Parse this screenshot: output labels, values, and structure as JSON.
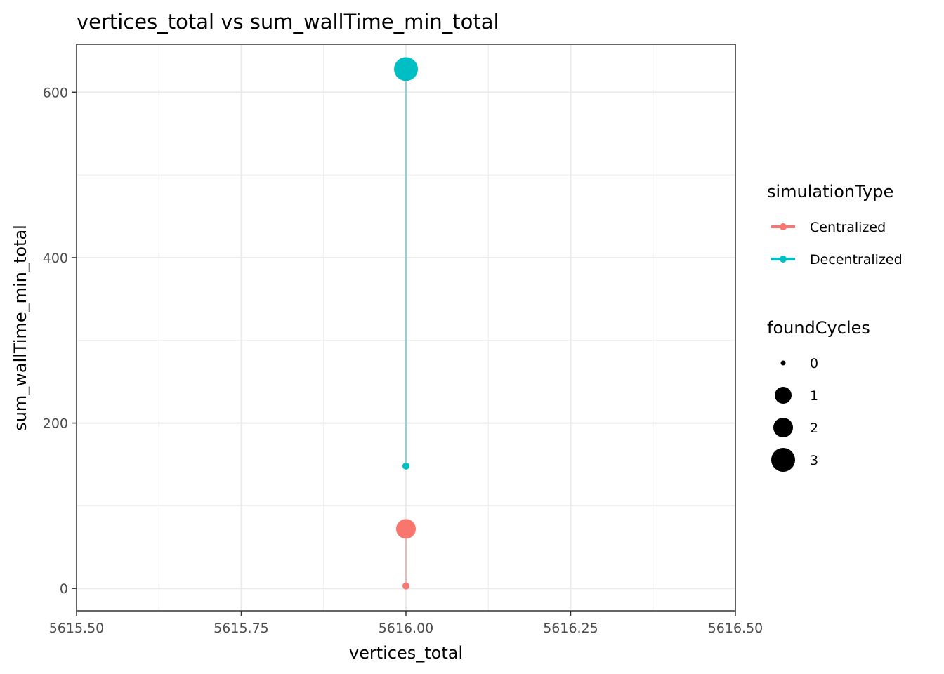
{
  "chart_data": {
    "type": "scatter",
    "title": "vertices_total  vs  sum_wallTime_min_total",
    "xlabel": "vertices_total",
    "ylabel": "sum_wallTime_min_total",
    "xlim": [
      5615.5,
      5616.5
    ],
    "ylim": [
      -27,
      658
    ],
    "x_ticks": [
      "5615.50",
      "5615.75",
      "5616.00",
      "5616.25",
      "5616.50"
    ],
    "y_ticks": [
      "0",
      "200",
      "400",
      "600"
    ],
    "grid": true,
    "legend_position": "right",
    "color_legend": {
      "title": "simulationType",
      "entries": [
        {
          "label": "Centralized",
          "color": "#F8766D"
        },
        {
          "label": "Decentralized",
          "color": "#00BFC4"
        }
      ]
    },
    "size_legend": {
      "title": "foundCycles",
      "entries": [
        "0",
        "1",
        "2",
        "3"
      ]
    },
    "series": [
      {
        "name": "Centralized",
        "color": "#F8766D",
        "points": [
          {
            "x": 5616.0,
            "y": 3,
            "foundCycles": 0
          },
          {
            "x": 5616.0,
            "y": 72,
            "foundCycles": 2
          }
        ]
      },
      {
        "name": "Decentralized",
        "color": "#00BFC4",
        "points": [
          {
            "x": 5616.0,
            "y": 148,
            "foundCycles": 0
          },
          {
            "x": 5616.0,
            "y": 628,
            "foundCycles": 3
          }
        ]
      }
    ]
  }
}
